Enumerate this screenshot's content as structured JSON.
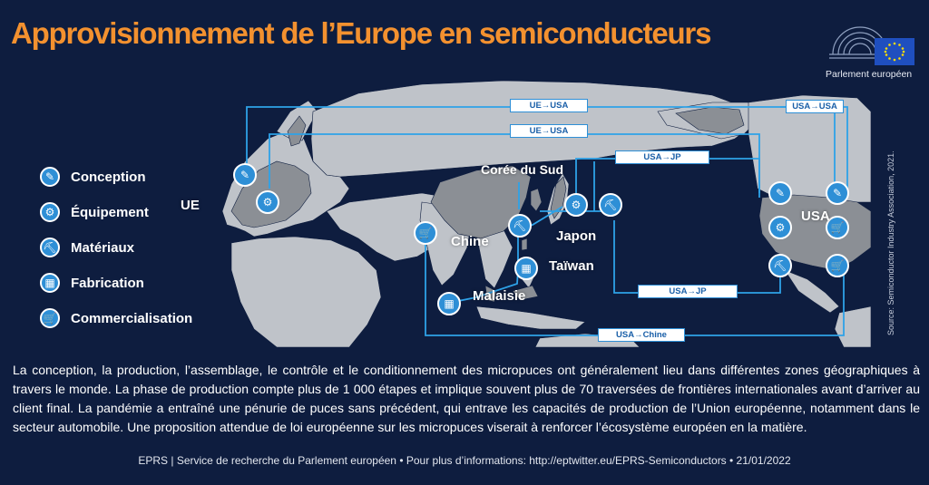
{
  "title": "Approvisionnement de l’Europe en semiconducteurs",
  "logo": {
    "name": "Parlement européen",
    "flag_color": "#1f4fbf",
    "star_color": "#ffdd00"
  },
  "colors": {
    "background": "#0e1d3f",
    "title": "#f3912f",
    "accent": "#2e8fd6",
    "land": "#bfc3c9",
    "highlight": "#8b8f95"
  },
  "legend": [
    {
      "label": "Conception",
      "icon": "pencil-ruler-icon",
      "glyph": "✎"
    },
    {
      "label": "Équipement",
      "icon": "robot-arm-icon",
      "glyph": "⚙"
    },
    {
      "label": "Matériaux",
      "icon": "mining-truck-icon",
      "glyph": "⛏"
    },
    {
      "label": "Fabrication",
      "icon": "factory-icon",
      "glyph": "▦"
    },
    {
      "label": "Commercialisation",
      "icon": "shopping-cart-icon",
      "glyph": "🛒"
    }
  ],
  "regions": {
    "eu": "UE",
    "china": "Chine",
    "korea": "Corée du Sud",
    "japan": "Japon",
    "taiwan": "Taïwan",
    "malaysia": "Malaisie",
    "usa": "USA"
  },
  "routes": [
    "UE→USA",
    "UE→USA",
    "USA→JP",
    "USA→USA",
    "USA→JP",
    "USA→Chine"
  ],
  "source": "Source: Semiconductor Industry Association, 2021.",
  "body_text": "La conception, la production, l’assemblage, le contrôle et le conditionnement des micropuces ont généralement lieu dans différentes zones géographiques à travers le monde. La phase de production compte plus de 1 000 étapes et implique souvent plus de 70 traversées de frontières internationales avant d’arriver au client final. La pandémie a entraîné une pénurie de puces sans précédent, qui entrave les capacités de production de l’Union européenne, notamment dans le secteur automobile. Une proposition attendue de loi européenne sur les micropuces viserait à renforcer l’écosystème européen en la matière.",
  "footer": "EPRS | Service de recherche du Parlement européen • Pour plus d’informations: http://eptwitter.eu/EPRS-Semiconductors • 21/01/2022"
}
